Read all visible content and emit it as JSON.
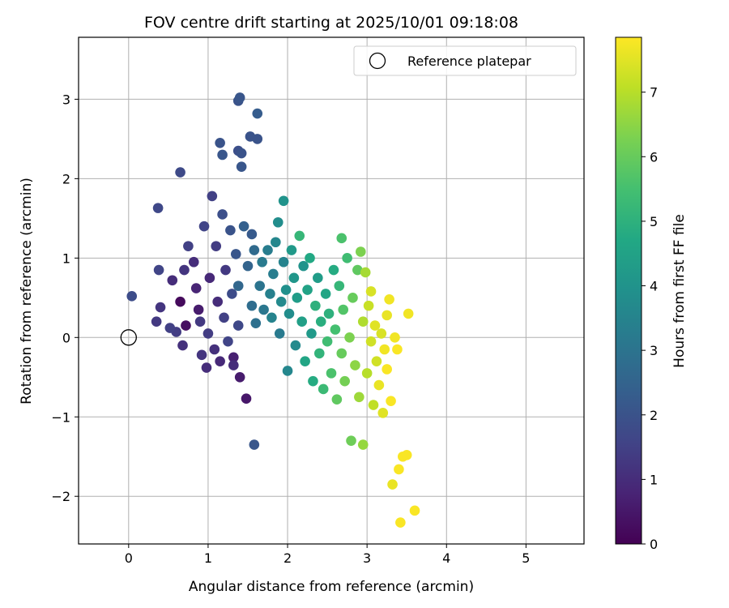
{
  "chart_data": {
    "type": "scatter",
    "title": "FOV centre drift starting at 2025/10/01 09:18:08",
    "xlabel": "Angular distance from reference (arcmin)",
    "ylabel": "Rotation from reference (arcmin)",
    "xlim": [
      -0.63,
      5.73
    ],
    "ylim": [
      -2.6,
      3.78
    ],
    "xticks": [
      0,
      1,
      2,
      3,
      4,
      5
    ],
    "yticks": [
      -2,
      -1,
      0,
      1,
      2,
      3
    ],
    "grid": true,
    "legend": {
      "placement": "upper-right",
      "entries": [
        "Reference platepar"
      ]
    },
    "reference_point": {
      "x": 0,
      "y": 0,
      "marker": "open-circle"
    },
    "colorbar": {
      "label": "Hours from first FF file",
      "colormap": "viridis",
      "range": [
        0,
        7.85
      ],
      "ticks": [
        0,
        1,
        2,
        3,
        4,
        5,
        6,
        7
      ]
    },
    "points": [
      {
        "x": 0.04,
        "y": 0.52,
        "h": 1.8
      },
      {
        "x": 0.37,
        "y": 1.63,
        "h": 1.7
      },
      {
        "x": 0.65,
        "y": 2.08,
        "h": 1.75
      },
      {
        "x": 0.38,
        "y": 0.85,
        "h": 1.6
      },
      {
        "x": 0.4,
        "y": 0.38,
        "h": 1.2
      },
      {
        "x": 0.52,
        "y": 0.12,
        "h": 1.5
      },
      {
        "x": 0.6,
        "y": 0.07,
        "h": 1.4
      },
      {
        "x": 0.35,
        "y": 0.2,
        "h": 1.3
      },
      {
        "x": 0.55,
        "y": 0.72,
        "h": 1.0
      },
      {
        "x": 0.7,
        "y": 0.85,
        "h": 1.2
      },
      {
        "x": 0.65,
        "y": 0.45,
        "h": 0.2
      },
      {
        "x": 0.68,
        "y": -0.1,
        "h": 1.1
      },
      {
        "x": 0.72,
        "y": 0.15,
        "h": 0.3
      },
      {
        "x": 0.75,
        "y": 1.15,
        "h": 1.5
      },
      {
        "x": 0.82,
        "y": 0.95,
        "h": 1.0
      },
      {
        "x": 0.85,
        "y": 0.62,
        "h": 0.8
      },
      {
        "x": 0.88,
        "y": 0.35,
        "h": 0.6
      },
      {
        "x": 0.9,
        "y": 0.2,
        "h": 1.3
      },
      {
        "x": 0.92,
        "y": -0.22,
        "h": 1.2
      },
      {
        "x": 0.95,
        "y": 1.4,
        "h": 1.6
      },
      {
        "x": 0.98,
        "y": -0.38,
        "h": 1.0
      },
      {
        "x": 1.0,
        "y": 0.05,
        "h": 1.4
      },
      {
        "x": 1.02,
        "y": 0.75,
        "h": 0.9
      },
      {
        "x": 1.05,
        "y": 1.78,
        "h": 1.5
      },
      {
        "x": 1.08,
        "y": -0.15,
        "h": 1.1
      },
      {
        "x": 1.1,
        "y": 1.15,
        "h": 1.4
      },
      {
        "x": 1.12,
        "y": 0.45,
        "h": 1.0
      },
      {
        "x": 1.15,
        "y": -0.3,
        "h": 0.9
      },
      {
        "x": 1.18,
        "y": 1.55,
        "h": 1.9
      },
      {
        "x": 1.2,
        "y": 0.25,
        "h": 1.5
      },
      {
        "x": 1.22,
        "y": 0.85,
        "h": 1.3
      },
      {
        "x": 1.25,
        "y": -0.05,
        "h": 1.6
      },
      {
        "x": 1.28,
        "y": 1.35,
        "h": 2.0
      },
      {
        "x": 1.3,
        "y": 0.55,
        "h": 1.8
      },
      {
        "x": 1.32,
        "y": -0.35,
        "h": 1.0
      },
      {
        "x": 1.35,
        "y": 1.05,
        "h": 2.1
      },
      {
        "x": 1.38,
        "y": 0.15,
        "h": 1.7
      },
      {
        "x": 1.15,
        "y": 2.45,
        "h": 2.0
      },
      {
        "x": 1.18,
        "y": 2.3,
        "h": 2.1
      },
      {
        "x": 1.38,
        "y": 2.98,
        "h": 2.0
      },
      {
        "x": 1.4,
        "y": 3.02,
        "h": 2.1
      },
      {
        "x": 1.38,
        "y": 2.35,
        "h": 1.9
      },
      {
        "x": 1.42,
        "y": 2.32,
        "h": 2.0
      },
      {
        "x": 1.42,
        "y": 2.15,
        "h": 2.1
      },
      {
        "x": 1.53,
        "y": 2.53,
        "h": 2.0
      },
      {
        "x": 1.62,
        "y": 2.5,
        "h": 2.0
      },
      {
        "x": 1.62,
        "y": 2.82,
        "h": 2.3
      },
      {
        "x": 1.58,
        "y": -1.35,
        "h": 2.1
      },
      {
        "x": 1.48,
        "y": -0.77,
        "h": 0.5
      },
      {
        "x": 1.4,
        "y": -0.5,
        "h": 0.6
      },
      {
        "x": 1.32,
        "y": -0.25,
        "h": 0.7
      },
      {
        "x": 1.45,
        "y": 1.4,
        "h": 2.4
      },
      {
        "x": 1.5,
        "y": 0.9,
        "h": 2.5
      },
      {
        "x": 1.55,
        "y": 1.3,
        "h": 2.2
      },
      {
        "x": 1.38,
        "y": 0.65,
        "h": 2.6
      },
      {
        "x": 1.55,
        "y": 0.4,
        "h": 2.8
      },
      {
        "x": 1.58,
        "y": 1.1,
        "h": 2.7
      },
      {
        "x": 1.6,
        "y": 0.18,
        "h": 2.9
      },
      {
        "x": 1.65,
        "y": 0.65,
        "h": 3.0
      },
      {
        "x": 1.68,
        "y": 0.95,
        "h": 3.2
      },
      {
        "x": 1.7,
        "y": 0.35,
        "h": 3.1
      },
      {
        "x": 1.75,
        "y": 1.1,
        "h": 3.3
      },
      {
        "x": 1.78,
        "y": 0.55,
        "h": 3.4
      },
      {
        "x": 1.8,
        "y": 0.25,
        "h": 3.5
      },
      {
        "x": 1.82,
        "y": 0.8,
        "h": 3.3
      },
      {
        "x": 1.85,
        "y": 1.2,
        "h": 3.6
      },
      {
        "x": 1.88,
        "y": 1.45,
        "h": 3.8
      },
      {
        "x": 1.9,
        "y": 0.05,
        "h": 3.2
      },
      {
        "x": 1.92,
        "y": 0.45,
        "h": 3.7
      },
      {
        "x": 1.95,
        "y": 1.72,
        "h": 4.0
      },
      {
        "x": 1.95,
        "y": 0.95,
        "h": 3.5
      },
      {
        "x": 1.98,
        "y": 0.6,
        "h": 3.9
      },
      {
        "x": 2.0,
        "y": -0.42,
        "h": 3.6
      },
      {
        "x": 2.02,
        "y": 0.3,
        "h": 3.8
      },
      {
        "x": 2.05,
        "y": 1.1,
        "h": 4.2
      },
      {
        "x": 2.08,
        "y": 0.75,
        "h": 4.1
      },
      {
        "x": 2.1,
        "y": -0.1,
        "h": 3.7
      },
      {
        "x": 2.12,
        "y": 0.5,
        "h": 4.3
      },
      {
        "x": 2.15,
        "y": 1.28,
        "h": 5.2
      },
      {
        "x": 2.18,
        "y": 0.2,
        "h": 4.4
      },
      {
        "x": 2.2,
        "y": 0.9,
        "h": 4.0
      },
      {
        "x": 2.22,
        "y": -0.3,
        "h": 4.6
      },
      {
        "x": 2.25,
        "y": 0.6,
        "h": 4.5
      },
      {
        "x": 2.28,
        "y": 1.0,
        "h": 4.7
      },
      {
        "x": 2.3,
        "y": 0.05,
        "h": 4.2
      },
      {
        "x": 2.32,
        "y": -0.55,
        "h": 4.8
      },
      {
        "x": 2.35,
        "y": 0.4,
        "h": 5.0
      },
      {
        "x": 2.38,
        "y": 0.75,
        "h": 4.3
      },
      {
        "x": 2.4,
        "y": -0.2,
        "h": 5.1
      },
      {
        "x": 2.42,
        "y": 0.2,
        "h": 4.9
      },
      {
        "x": 2.45,
        "y": -0.65,
        "h": 5.3
      },
      {
        "x": 2.48,
        "y": 0.55,
        "h": 4.6
      },
      {
        "x": 2.5,
        "y": -0.05,
        "h": 5.4
      },
      {
        "x": 2.52,
        "y": 0.3,
        "h": 5.0
      },
      {
        "x": 2.55,
        "y": -0.45,
        "h": 5.6
      },
      {
        "x": 2.58,
        "y": 0.85,
        "h": 4.8
      },
      {
        "x": 2.6,
        "y": 0.1,
        "h": 5.5
      },
      {
        "x": 2.62,
        "y": -0.78,
        "h": 5.9
      },
      {
        "x": 2.65,
        "y": 0.65,
        "h": 5.2
      },
      {
        "x": 2.68,
        "y": 1.25,
        "h": 5.6
      },
      {
        "x": 2.68,
        "y": -0.2,
        "h": 6.0
      },
      {
        "x": 2.7,
        "y": 0.35,
        "h": 5.7
      },
      {
        "x": 2.72,
        "y": -0.55,
        "h": 6.2
      },
      {
        "x": 2.75,
        "y": 1.0,
        "h": 5.4
      },
      {
        "x": 2.78,
        "y": 0.0,
        "h": 6.3
      },
      {
        "x": 2.8,
        "y": -1.3,
        "h": 6.1
      },
      {
        "x": 2.82,
        "y": 0.5,
        "h": 6.0
      },
      {
        "x": 2.85,
        "y": -0.35,
        "h": 6.5
      },
      {
        "x": 2.88,
        "y": 0.85,
        "h": 5.9
      },
      {
        "x": 2.9,
        "y": -0.75,
        "h": 6.7
      },
      {
        "x": 2.92,
        "y": 1.08,
        "h": 6.3
      },
      {
        "x": 2.95,
        "y": -1.35,
        "h": 6.6
      },
      {
        "x": 2.95,
        "y": 0.2,
        "h": 6.9
      },
      {
        "x": 2.98,
        "y": 0.82,
        "h": 6.8
      },
      {
        "x": 3.0,
        "y": -0.45,
        "h": 7.0
      },
      {
        "x": 3.02,
        "y": 0.4,
        "h": 7.2
      },
      {
        "x": 3.05,
        "y": -0.05,
        "h": 7.3
      },
      {
        "x": 3.05,
        "y": 0.58,
        "h": 7.4
      },
      {
        "x": 3.08,
        "y": -0.85,
        "h": 7.1
      },
      {
        "x": 3.1,
        "y": 0.15,
        "h": 7.5
      },
      {
        "x": 3.12,
        "y": -0.3,
        "h": 7.3
      },
      {
        "x": 3.15,
        "y": -0.6,
        "h": 7.6
      },
      {
        "x": 3.18,
        "y": 0.05,
        "h": 7.4
      },
      {
        "x": 3.2,
        "y": -0.95,
        "h": 7.5
      },
      {
        "x": 3.22,
        "y": -0.15,
        "h": 7.7
      },
      {
        "x": 3.25,
        "y": 0.28,
        "h": 7.6
      },
      {
        "x": 3.25,
        "y": -0.4,
        "h": 7.8
      },
      {
        "x": 3.28,
        "y": 0.48,
        "h": 7.7
      },
      {
        "x": 3.3,
        "y": -0.8,
        "h": 7.8
      },
      {
        "x": 3.32,
        "y": -1.85,
        "h": 7.6
      },
      {
        "x": 3.35,
        "y": 0.0,
        "h": 7.7
      },
      {
        "x": 3.38,
        "y": -0.15,
        "h": 7.8
      },
      {
        "x": 3.4,
        "y": -1.66,
        "h": 7.8
      },
      {
        "x": 3.42,
        "y": -2.33,
        "h": 7.8
      },
      {
        "x": 3.45,
        "y": -1.5,
        "h": 7.8
      },
      {
        "x": 3.5,
        "y": -1.48,
        "h": 7.8
      },
      {
        "x": 3.52,
        "y": 0.3,
        "h": 7.7
      },
      {
        "x": 3.6,
        "y": -2.18,
        "h": 7.8
      }
    ]
  }
}
